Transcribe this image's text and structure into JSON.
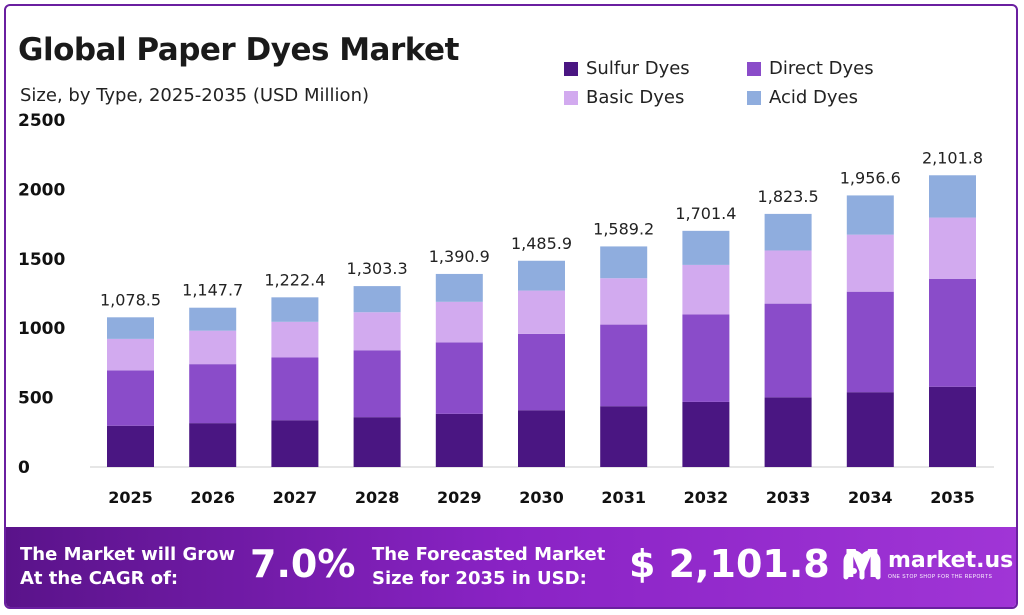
{
  "header": {
    "title": "Global Paper Dyes Market",
    "subtitle": "Size, by Type, 2025-2035 (USD Million)"
  },
  "chart_data": {
    "type": "bar",
    "stacked": true,
    "categories": [
      "2025",
      "2026",
      "2027",
      "2028",
      "2029",
      "2030",
      "2031",
      "2032",
      "2033",
      "2034",
      "2035"
    ],
    "series": [
      {
        "name": "Sulfur Dyes",
        "color": "#4a1682",
        "values": [
          297,
          316,
          337,
          359,
          383,
          409,
          438,
          469,
          502,
          539,
          578
        ]
      },
      {
        "name": "Direct Dyes",
        "color": "#8a4cc9",
        "values": [
          399,
          425,
          452,
          482,
          515,
          550,
          588,
          630,
          675,
          724,
          778
        ]
      },
      {
        "name": "Basic Dyes",
        "color": "#d2aaef",
        "values": [
          227,
          241,
          257,
          274,
          292,
          312,
          334,
          357,
          383,
          411,
          441
        ]
      },
      {
        "name": "Acid Dyes",
        "color": "#8fadde",
        "values": [
          155.5,
          165.7,
          176.4,
          188.3,
          200.9,
          214.9,
          229.2,
          245.4,
          263.5,
          282.6,
          304.8
        ]
      }
    ],
    "totals": [
      "1,078.5",
      "1,147.7",
      "1,222.4",
      "1,303.3",
      "1,390.9",
      "1,485.9",
      "1,589.2",
      "1,701.4",
      "1,823.5",
      "1,956.6",
      "2,101.8"
    ],
    "totals_values": [
      1078.5,
      1147.7,
      1222.4,
      1303.3,
      1390.9,
      1485.9,
      1589.2,
      1701.4,
      1823.5,
      1956.6,
      2101.8
    ],
    "yticks": [
      "0",
      "500",
      "1000",
      "1500",
      "2000",
      "2500"
    ],
    "ylim": [
      0,
      2500
    ],
    "legend_position": "top-right",
    "grid": false
  },
  "banner": {
    "cagr_label": "The Market will Grow\nAt the CAGR of:",
    "cagr_value": "7.0%",
    "forecast_label": "The Forecasted Market\nSize for 2035 in USD:",
    "forecast_value": "$ 2,101.8 M",
    "brand_name": "market.us",
    "brand_tagline": "ONE STOP SHOP FOR THE REPORTS",
    "colors": {
      "start": "#5a138a",
      "end": "#a035d6"
    }
  }
}
